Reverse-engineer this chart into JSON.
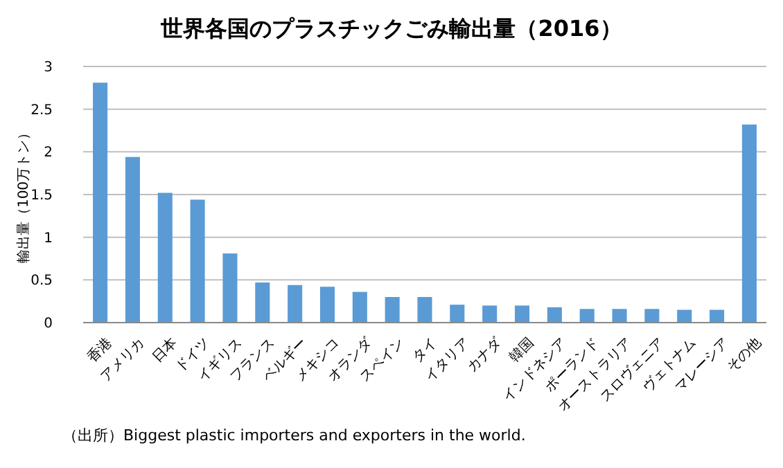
{
  "chart_data": {
    "type": "bar",
    "title": "世界各国のプラスチックごみ輸出量（2016）",
    "ylabel": "輸出量（100万トン）",
    "categories": [
      "香港",
      "アメリカ",
      "日本",
      "ドイツ",
      "イギリス",
      "フランス",
      "ベルギー",
      "メキシコ",
      "オランダ",
      "スペイン",
      "タイ",
      "イタリア",
      "カナダ",
      "韓国",
      "インドネシア",
      "ポーランド",
      "オーストラリア",
      "スロヴェニア",
      "ヴェトナム",
      "マレーシア",
      "その他"
    ],
    "values": [
      2.81,
      1.94,
      1.52,
      1.44,
      0.81,
      0.47,
      0.44,
      0.42,
      0.36,
      0.3,
      0.3,
      0.21,
      0.2,
      0.2,
      0.18,
      0.16,
      0.16,
      0.16,
      0.15,
      0.15,
      2.32
    ],
    "color": "#5b9bd5",
    "ylim": [
      0,
      3
    ],
    "yticks": [
      0,
      0.5,
      1,
      1.5,
      2,
      2.5,
      3
    ],
    "grid": "y",
    "annotations": [
      "（出所）Biggest plastic importers and exporters in the world."
    ]
  }
}
